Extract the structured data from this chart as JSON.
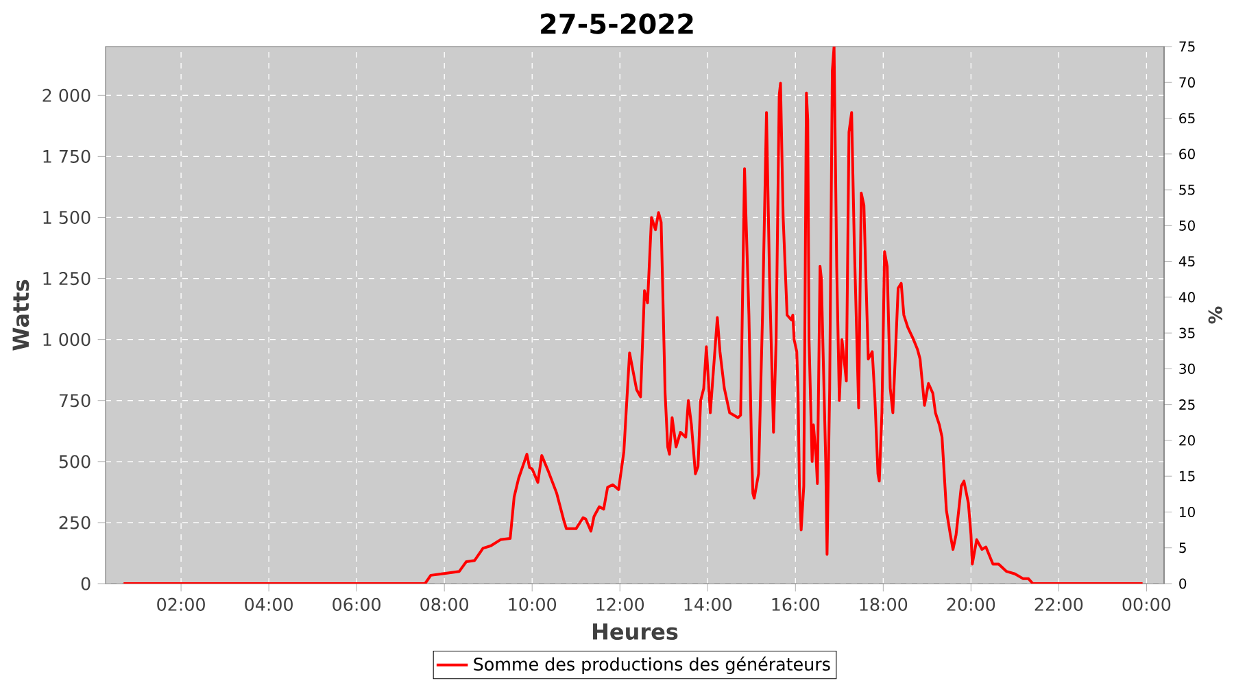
{
  "chart_data": {
    "type": "line",
    "title": "27-5-2022",
    "xlabel": "Heures",
    "ylabel": "Watts",
    "y2label": "%",
    "x": [
      0.69,
      7.56,
      7.69,
      7.94,
      8.34,
      8.5,
      8.69,
      8.88,
      9.06,
      9.28,
      9.5,
      9.59,
      9.69,
      9.88,
      9.94,
      10.0,
      10.13,
      10.22,
      10.38,
      10.56,
      10.72,
      10.78,
      11.0,
      11.16,
      11.22,
      11.34,
      11.41,
      11.53,
      11.63,
      11.72,
      11.84,
      11.97,
      12.09,
      12.22,
      12.38,
      12.47,
      12.56,
      12.63,
      12.72,
      12.81,
      12.88,
      12.94,
      12.97,
      13.03,
      13.09,
      13.13,
      13.19,
      13.28,
      13.38,
      13.5,
      13.56,
      13.63,
      13.72,
      13.78,
      13.84,
      13.91,
      13.97,
      14.06,
      14.22,
      14.28,
      14.38,
      14.5,
      14.69,
      14.75,
      14.78,
      14.84,
      14.94,
      15.0,
      15.03,
      15.06,
      15.16,
      15.25,
      15.34,
      15.41,
      15.5,
      15.56,
      15.63,
      15.66,
      15.72,
      15.81,
      15.91,
      15.94,
      15.97,
      16.03,
      16.06,
      16.09,
      16.13,
      16.19,
      16.25,
      16.28,
      16.31,
      16.38,
      16.41,
      16.47,
      16.5,
      16.56,
      16.59,
      16.69,
      16.72,
      16.78,
      16.84,
      16.88,
      16.94,
      17.0,
      17.06,
      17.16,
      17.22,
      17.28,
      17.34,
      17.44,
      17.5,
      17.56,
      17.63,
      17.66,
      17.75,
      17.81,
      17.88,
      17.91,
      17.97,
      18.03,
      18.09,
      18.16,
      18.22,
      18.28,
      18.34,
      18.41,
      18.47,
      18.56,
      18.69,
      18.78,
      18.84,
      18.94,
      19.03,
      19.13,
      19.19,
      19.28,
      19.34,
      19.44,
      19.53,
      19.59,
      19.66,
      19.78,
      19.84,
      19.94,
      20.0,
      20.03,
      20.13,
      20.25,
      20.34,
      20.5,
      20.63,
      20.81,
      21.0,
      21.19,
      21.31,
      21.41,
      23.91
    ],
    "series": [
      {
        "name": "Somme des productions des  générateurs",
        "color": "#ff0000",
        "values": [
          0,
          0,
          34,
          40,
          50,
          90,
          95,
          145,
          155,
          180,
          185,
          355,
          430,
          530,
          475,
          470,
          415,
          525,
          455,
          370,
          260,
          225,
          225,
          270,
          265,
          215,
          275,
          315,
          305,
          395,
          405,
          385,
          540,
          945,
          795,
          765,
          1200,
          1150,
          1500,
          1450,
          1520,
          1480,
          1250,
          780,
          560,
          530,
          680,
          560,
          620,
          600,
          750,
          650,
          450,
          480,
          750,
          800,
          970,
          700,
          1090,
          950,
          800,
          700,
          680,
          690,
          1000,
          1700,
          1100,
          550,
          370,
          350,
          450,
          1100,
          1930,
          1250,
          620,
          1000,
          2000,
          2050,
          1500,
          1100,
          1080,
          1100,
          1000,
          950,
          780,
          400,
          220,
          400,
          2010,
          1900,
          1000,
          500,
          650,
          520,
          410,
          1300,
          1250,
          500,
          120,
          800,
          2100,
          2200,
          1300,
          750,
          1000,
          830,
          1850,
          1930,
          1400,
          720,
          1600,
          1550,
          1100,
          920,
          950,
          760,
          450,
          420,
          700,
          1360,
          1300,
          800,
          700,
          950,
          1210,
          1230,
          1100,
          1050,
          1000,
          960,
          920,
          730,
          820,
          780,
          700,
          650,
          600,
          300,
          200,
          140,
          200,
          400,
          420,
          330,
          200,
          80,
          180,
          140,
          150,
          80,
          80,
          50,
          40,
          20,
          20,
          0,
          0
        ]
      }
    ],
    "xlim": [
      0.28,
      24.4
    ],
    "ylim": [
      0,
      2200
    ],
    "y2lim": [
      0,
      75
    ],
    "xticks": [
      {
        "value": 2,
        "label": "02:00"
      },
      {
        "value": 4,
        "label": "04:00"
      },
      {
        "value": 6,
        "label": "06:00"
      },
      {
        "value": 8,
        "label": "08:00"
      },
      {
        "value": 10,
        "label": "10:00"
      },
      {
        "value": 12,
        "label": "12:00"
      },
      {
        "value": 14,
        "label": "14:00"
      },
      {
        "value": 16,
        "label": "16:00"
      },
      {
        "value": 18,
        "label": "18:00"
      },
      {
        "value": 20,
        "label": "20:00"
      },
      {
        "value": 22,
        "label": "22:00"
      },
      {
        "value": 24,
        "label": "00:00"
      }
    ],
    "yticks": [
      0,
      250,
      500,
      750,
      {
        "value": 1000,
        "label": "1 000"
      },
      {
        "value": 1250,
        "label": "1 250"
      },
      {
        "value": 1500,
        "label": "1 500"
      },
      {
        "value": 1750,
        "label": "1 750"
      },
      {
        "value": 2000,
        "label": "2 000"
      }
    ],
    "y2ticks": [
      0,
      5,
      10,
      15,
      20,
      25,
      30,
      35,
      40,
      45,
      50,
      55,
      60,
      65,
      70,
      75
    ],
    "grid": true,
    "legend": "bottom",
    "marker": "none",
    "line_style": "solid"
  }
}
